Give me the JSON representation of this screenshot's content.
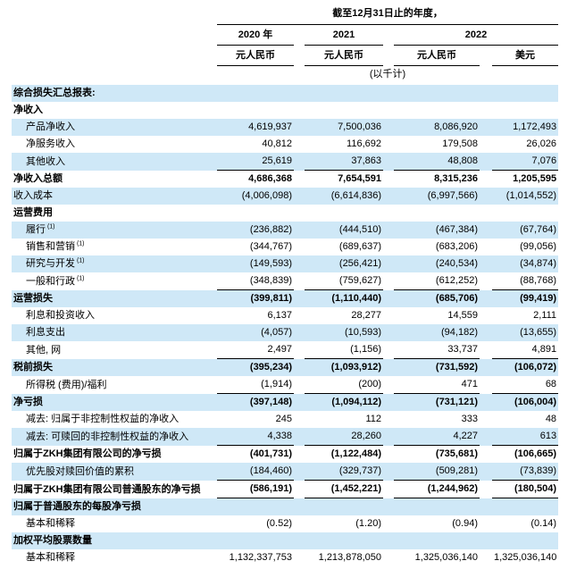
{
  "colors": {
    "row_shade": "#cfe8f7"
  },
  "header": {
    "period_label": "截至12月31日止的年度，",
    "years": {
      "0": "2020 年",
      "1": "2021",
      "2": "2022"
    },
    "currencies": {
      "0": "元人民币",
      "1": "元人民币",
      "2": "元人民币",
      "3": "美元"
    },
    "scale_note": "(以千计)"
  },
  "rows": [
    {
      "label": "综合损失汇总报表:",
      "bold": true,
      "indent": 0,
      "shaded": true,
      "underline": false,
      "values": []
    },
    {
      "label": "净收入",
      "bold": true,
      "indent": 0,
      "shaded": false,
      "underline": false,
      "values": []
    },
    {
      "label": "产品净收入",
      "bold": false,
      "indent": 1,
      "shaded": true,
      "underline": false,
      "values": [
        "4,619,937",
        "7,500,036",
        "8,086,920",
        "1,172,493"
      ]
    },
    {
      "label": "净服务收入",
      "bold": false,
      "indent": 1,
      "shaded": false,
      "underline": false,
      "values": [
        "40,812",
        "116,692",
        "179,508",
        "26,026"
      ]
    },
    {
      "label": "其他收入",
      "bold": false,
      "indent": 1,
      "shaded": true,
      "underline": true,
      "values": [
        "25,619",
        "37,863",
        "48,808",
        "7,076"
      ]
    },
    {
      "label": "净收入总额",
      "bold": true,
      "indent": 0,
      "shaded": false,
      "underline": false,
      "values": [
        "4,686,368",
        "7,654,591",
        "8,315,236",
        "1,205,595"
      ]
    },
    {
      "label": "收入成本",
      "bold": false,
      "indent": 0,
      "shaded": true,
      "underline": false,
      "values": [
        "(4,006,098)",
        "(6,614,836)",
        "(6,997,566)",
        "(1,014,552)"
      ]
    },
    {
      "label": "运营费用",
      "bold": true,
      "indent": 0,
      "shaded": false,
      "underline": false,
      "values": []
    },
    {
      "label": "履行",
      "sup": "(1)",
      "bold": false,
      "indent": 1,
      "shaded": true,
      "underline": false,
      "values": [
        "(236,882)",
        "(444,510)",
        "(467,384)",
        "(67,764)"
      ]
    },
    {
      "label": "销售和营销",
      "sup": "(1)",
      "bold": false,
      "indent": 1,
      "shaded": false,
      "underline": false,
      "values": [
        "(344,767)",
        "(689,637)",
        "(683,206)",
        "(99,056)"
      ]
    },
    {
      "label": "研究与开发",
      "sup": "(1)",
      "bold": false,
      "indent": 1,
      "shaded": true,
      "underline": false,
      "values": [
        "(149,593)",
        "(256,421)",
        "(240,534)",
        "(34,874)"
      ]
    },
    {
      "label": "一般和行政",
      "sup": "(1)",
      "bold": false,
      "indent": 1,
      "shaded": false,
      "underline": true,
      "values": [
        "(348,839)",
        "(759,627)",
        "(612,252)",
        "(88,768)"
      ]
    },
    {
      "label": "运营损失",
      "bold": true,
      "indent": 0,
      "shaded": true,
      "underline": false,
      "values": [
        "(399,811)",
        "(1,110,440)",
        "(685,706)",
        "(99,419)"
      ]
    },
    {
      "label": "利息和投资收入",
      "bold": false,
      "indent": 1,
      "shaded": false,
      "underline": false,
      "values": [
        "6,137",
        "28,277",
        "14,559",
        "2,111"
      ]
    },
    {
      "label": "利息支出",
      "bold": false,
      "indent": 1,
      "shaded": true,
      "underline": false,
      "values": [
        "(4,057)",
        "(10,593)",
        "(94,182)",
        "(13,655)"
      ]
    },
    {
      "label": "其他, 网",
      "bold": false,
      "indent": 1,
      "shaded": false,
      "underline": true,
      "values": [
        "2,497",
        "(1,156)",
        "33,737",
        "4,891"
      ]
    },
    {
      "label": "税前损失",
      "bold": true,
      "indent": 0,
      "shaded": true,
      "underline": false,
      "values": [
        "(395,234)",
        "(1,093,912)",
        "(731,592)",
        "(106,072)"
      ]
    },
    {
      "label": "所得税 (费用)/福利",
      "bold": false,
      "indent": 1,
      "shaded": false,
      "underline": true,
      "values": [
        "(1,914)",
        "(200)",
        "471",
        "68"
      ]
    },
    {
      "label": "净亏损",
      "bold": true,
      "indent": 0,
      "shaded": true,
      "underline": false,
      "values": [
        "(397,148)",
        "(1,094,112)",
        "(731,121)",
        "(106,004)"
      ]
    },
    {
      "label": "减去: 归属于非控制性权益的净收入",
      "bold": false,
      "indent": 1,
      "shaded": false,
      "underline": false,
      "values": [
        "245",
        "112",
        "333",
        "48"
      ]
    },
    {
      "label": "减去: 可赎回的非控制性权益的净收入",
      "bold": false,
      "indent": 1,
      "shaded": true,
      "underline": true,
      "values": [
        "4,338",
        "28,260",
        "4,227",
        "613"
      ]
    },
    {
      "label": "归属于ZKH集团有限公司的净亏损",
      "bold": true,
      "indent": 0,
      "shaded": false,
      "underline": false,
      "values": [
        "(401,731)",
        "(1,122,484)",
        "(735,681)",
        "(106,665)"
      ]
    },
    {
      "label": "优先股对赎回价值的累积",
      "bold": false,
      "indent": 1,
      "shaded": true,
      "underline": true,
      "values": [
        "(184,460)",
        "(329,737)",
        "(509,281)",
        "(73,839)"
      ]
    },
    {
      "label": "归属于ZKH集团有限公司普通股东的净亏损",
      "bold": true,
      "indent": 0,
      "shaded": false,
      "underline": true,
      "values": [
        "(586,191)",
        "(1,452,221)",
        "(1,244,962)",
        "(180,504)"
      ]
    },
    {
      "label": "归属于普通股东的每股净亏损",
      "bold": true,
      "indent": 0,
      "shaded": true,
      "underline": false,
      "values": []
    },
    {
      "label": "基本和稀释",
      "bold": false,
      "indent": 1,
      "shaded": false,
      "underline": false,
      "values": [
        "(0.52)",
        "(1.20)",
        "(0.94)",
        "(0.14)"
      ]
    },
    {
      "label": "加权平均股票数量",
      "bold": true,
      "indent": 0,
      "shaded": true,
      "underline": false,
      "values": []
    },
    {
      "label": "基本和稀释",
      "bold": false,
      "indent": 1,
      "shaded": false,
      "underline": false,
      "values": [
        "1,132,337,753",
        "1,213,878,050",
        "1,325,036,140",
        "1,325,036,140"
      ]
    }
  ]
}
